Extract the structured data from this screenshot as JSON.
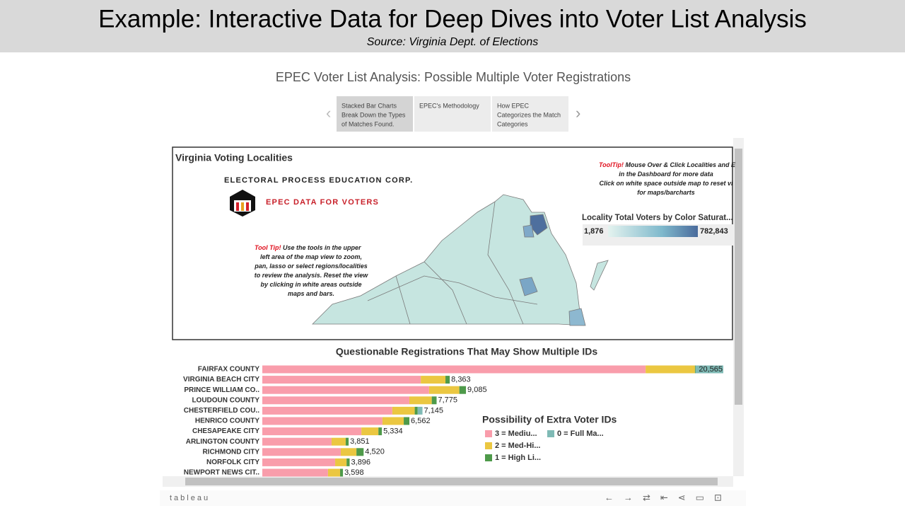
{
  "header": {
    "title": "Example: Interactive Data for Deep Dives into Voter List Analysis",
    "source": "Source: Virginia Dept. of Elections"
  },
  "dashboard": {
    "title": "EPEC Voter List Analysis: Possible Multiple Voter Registrations",
    "story_points": [
      {
        "lines": [
          "Stacked Bar Charts",
          "Break Down the Types",
          "of Matches Found."
        ]
      },
      {
        "lines": [
          "EPEC's Methodology"
        ]
      },
      {
        "lines": [
          "How EPEC",
          "Categorizes the Match",
          "Categories"
        ]
      }
    ],
    "map_panel": {
      "title": "Virginia Voting Localities",
      "org": "ELECTORAL PROCESS EDUCATION CORP.",
      "brand": "EPEC DATA FOR VOTERS",
      "tooltip_right": {
        "label": "ToolTip!",
        "lines": [
          " Mouse Over & Click Localities and E",
          "in the Dashboard  for more data",
          "Click on white space outside map to reset vi",
          "for maps/barcharts"
        ]
      },
      "tooltip_left": {
        "label": "Tool Tip!",
        "lines": [
          "  Use the  tools in the upper",
          "left area of the map view to zoom,",
          "pan, lasso or select regions/localities",
          "to review the analysis. Reset the view",
          "by clicking in white areas outside",
          "maps and bars."
        ]
      },
      "color_legend": {
        "title": "Locality Total Voters by Color Saturat...",
        "min": {
          "value": 1876,
          "label": "1,876"
        },
        "max": {
          "value": 782843,
          "label": "782,843"
        }
      }
    },
    "footer": {
      "brand": "tableau"
    }
  },
  "chart_data": {
    "type": "bar",
    "orientation": "horizontal",
    "stacked": true,
    "title": "Questionable Registrations That May Show Multiple IDs",
    "legend_title": "Possibility of Extra Voter IDs",
    "categories": [
      "FAIRFAX COUNTY",
      "VIRGINIA BEACH CITY",
      "PRINCE WILLIAM CO..",
      "LOUDOUN COUNTY",
      "CHESTERFIELD COU..",
      "HENRICO COUNTY",
      "CHESAPEAKE CITY",
      "ARLINGTON COUNTY",
      "RICHMOND CITY",
      "NORFOLK CITY",
      "NEWPORT NEWS CIT.."
    ],
    "series": [
      {
        "name": "3 = Mediu...",
        "color": "#f99dab",
        "values": [
          17100,
          7070,
          7440,
          6560,
          5800,
          5360,
          4420,
          3090,
          3500,
          3250,
          2930
        ]
      },
      {
        "name": "2 = Med-Hi...",
        "color": "#ebc741",
        "values": [
          2200,
          1100,
          1350,
          1000,
          1000,
          950,
          760,
          630,
          700,
          510,
          540
        ]
      },
      {
        "name": "1 = High Li...",
        "color": "#4e9a4a",
        "values": [
          30,
          193,
          295,
          215,
          130,
          252,
          154,
          131,
          320,
          136,
          128
        ]
      },
      {
        "name": "0 = Full Ma...",
        "color": "#7fbab5",
        "values": [
          1235,
          0,
          0,
          0,
          215,
          0,
          0,
          0,
          0,
          0,
          0
        ]
      }
    ],
    "totals": [
      20565,
      8363,
      9085,
      7775,
      7145,
      6562,
      5334,
      3851,
      4520,
      3896,
      3598
    ],
    "value_labels": [
      "20,565",
      "8,363",
      "9,085",
      "7,775",
      "7,145",
      "6,562",
      "5,334",
      "3,851",
      "4,520",
      "3,896",
      "3,598"
    ]
  }
}
